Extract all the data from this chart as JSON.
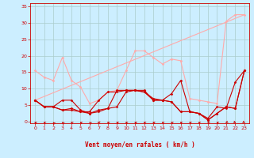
{
  "xlabel": "Vent moyen/en rafales ( km/h )",
  "bg_color": "#cceeff",
  "grid_color": "#aacccc",
  "xlim": [
    -0.5,
    23.5
  ],
  "ylim": [
    -0.5,
    36
  ],
  "yticks": [
    0,
    5,
    10,
    15,
    20,
    25,
    30,
    35
  ],
  "xticks": [
    0,
    1,
    2,
    3,
    4,
    5,
    6,
    7,
    8,
    9,
    10,
    11,
    12,
    13,
    14,
    15,
    16,
    17,
    18,
    19,
    20,
    21,
    22,
    23
  ],
  "series": [
    {
      "color": "#ffaaaa",
      "lw": 0.8,
      "marker": "D",
      "ms": 1.5,
      "data_x": [
        0,
        1,
        2,
        3,
        4,
        5,
        6,
        7,
        8,
        9,
        10,
        11,
        12,
        13,
        14,
        15,
        16,
        17,
        18,
        19,
        20,
        21,
        22,
        23
      ],
      "data_y": [
        15.5,
        13.5,
        12.5,
        19.5,
        12.5,
        10.5,
        5.5,
        6.5,
        9.0,
        9.5,
        15.5,
        21.5,
        21.5,
        19.5,
        17.5,
        19.0,
        18.5,
        7.0,
        6.5,
        6.0,
        5.5,
        30.5,
        32.5,
        32.5
      ]
    },
    {
      "color": "#ffaaaa",
      "lw": 0.8,
      "marker": null,
      "ms": 0,
      "data_x": [
        0,
        23
      ],
      "data_y": [
        6.5,
        32.5
      ]
    },
    {
      "color": "#cc0000",
      "lw": 0.8,
      "marker": "D",
      "ms": 1.5,
      "data_x": [
        0,
        1,
        2,
        3,
        4,
        5,
        6,
        7,
        8,
        9,
        10,
        11,
        12,
        13,
        14,
        15,
        16,
        17,
        18,
        19,
        20,
        21,
        22,
        23
      ],
      "data_y": [
        6.5,
        4.5,
        4.5,
        6.5,
        6.5,
        3.5,
        2.5,
        3.0,
        4.0,
        9.5,
        9.5,
        9.5,
        9.5,
        6.5,
        6.5,
        8.5,
        12.5,
        3.0,
        2.5,
        1.0,
        4.5,
        4.0,
        12.0,
        15.5
      ]
    },
    {
      "color": "#cc0000",
      "lw": 0.8,
      "marker": "D",
      "ms": 1.5,
      "data_x": [
        0,
        1,
        2,
        3,
        4,
        5,
        6,
        7,
        8,
        9,
        10,
        11,
        12,
        13,
        14,
        15,
        16,
        17,
        18,
        19,
        20,
        21,
        22,
        23
      ],
      "data_y": [
        6.5,
        4.5,
        4.5,
        3.5,
        3.5,
        3.0,
        3.0,
        6.5,
        9.0,
        9.0,
        9.5,
        9.5,
        9.0,
        7.0,
        6.5,
        6.0,
        3.0,
        3.0,
        2.5,
        0.5,
        2.5,
        4.5,
        4.0,
        15.5
      ]
    },
    {
      "color": "#cc0000",
      "lw": 0.8,
      "marker": "D",
      "ms": 1.5,
      "data_x": [
        0,
        1,
        2,
        3,
        4,
        5,
        6,
        7,
        8,
        9,
        10,
        11,
        12,
        13,
        14,
        15,
        16,
        17,
        18,
        19,
        20,
        21,
        22,
        23
      ],
      "data_y": [
        6.5,
        4.5,
        4.5,
        3.5,
        4.0,
        3.0,
        2.5,
        3.5,
        4.0,
        4.5,
        9.0,
        9.5,
        9.0,
        6.5,
        6.5,
        6.0,
        3.0,
        3.0,
        2.5,
        0.5,
        2.5,
        4.5,
        4.0,
        15.5
      ]
    }
  ],
  "wind_angles": [
    225,
    225,
    200,
    210,
    225,
    220,
    210,
    270,
    230,
    230,
    230,
    230,
    230,
    230,
    225,
    225,
    225,
    225,
    225,
    220,
    225,
    315,
    45,
    45
  ]
}
